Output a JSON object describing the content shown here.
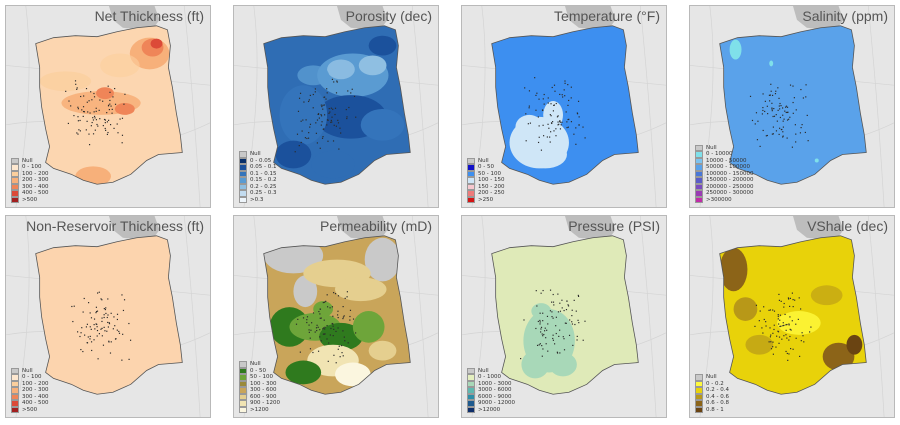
{
  "panels": [
    {
      "id": "net-thickness",
      "title": "Net Thickness (ft)",
      "base": "#fcd6b0",
      "legend": [
        {
          "label": "Null",
          "color": "#c9c9c9"
        },
        {
          "label": "0 - 100",
          "color": "#fde7cf"
        },
        {
          "label": "100 - 200",
          "color": "#fbcf9d"
        },
        {
          "label": "200 - 300",
          "color": "#f7b07a"
        },
        {
          "label": "300 - 400",
          "color": "#ef8558"
        },
        {
          "label": "400 - 500",
          "color": "#dc4a38"
        },
        {
          "label": ">500",
          "color": "#a21e1e"
        }
      ]
    },
    {
      "id": "porosity",
      "title": "Porosity (dec)",
      "base": "#2f6db4",
      "legend": [
        {
          "label": "Null",
          "color": "#c9c9c9"
        },
        {
          "label": "0 - 0.05",
          "color": "#08306b"
        },
        {
          "label": "0.05 - 0.1",
          "color": "#1b519c"
        },
        {
          "label": "0.1 - 0.15",
          "color": "#3474bb"
        },
        {
          "label": "0.15 - 0.2",
          "color": "#5a9bd2"
        },
        {
          "label": "0.2 - 0.25",
          "color": "#8fbfe2"
        },
        {
          "label": "0.25 - 0.3",
          "color": "#c3dcf0"
        },
        {
          "label": ">0.3",
          "color": "#eef5fb"
        }
      ]
    },
    {
      "id": "temperature",
      "title": "Temperature (°F)",
      "base": "#3d8ff0",
      "legend": [
        {
          "label": "Null",
          "color": "#c9c9c9"
        },
        {
          "label": "0 - 50",
          "color": "#1010c8"
        },
        {
          "label": "50 - 100",
          "color": "#3d8ff0"
        },
        {
          "label": "100 - 150",
          "color": "#cfe6f7"
        },
        {
          "label": "150 - 200",
          "color": "#f7c8cf"
        },
        {
          "label": "200 - 250",
          "color": "#ee7b7b"
        },
        {
          "label": ">250",
          "color": "#d41414"
        }
      ]
    },
    {
      "id": "salinity",
      "title": "Salinity (ppm)",
      "base": "#5aa2ea",
      "legend": [
        {
          "label": "Null",
          "color": "#c9c9c9"
        },
        {
          "label": "0 - 10000",
          "color": "#7fe0ea"
        },
        {
          "label": "10000 - 50000",
          "color": "#7cc3f0"
        },
        {
          "label": "50000 - 100000",
          "color": "#5aa2ea"
        },
        {
          "label": "100000 - 150000",
          "color": "#4a78d8"
        },
        {
          "label": "150000 - 200000",
          "color": "#5a5cc8"
        },
        {
          "label": "200000 - 250000",
          "color": "#7a4cc0"
        },
        {
          "label": "250000 - 300000",
          "color": "#9a3cb4"
        },
        {
          "label": ">300000",
          "color": "#c02ca8"
        }
      ]
    },
    {
      "id": "non-reservoir-thickness",
      "title": "Non-Reservoir Thickness (ft)",
      "base": "#fcd4ae",
      "legend": [
        {
          "label": "Null",
          "color": "#c9c9c9"
        },
        {
          "label": "0 - 100",
          "color": "#fde7cf"
        },
        {
          "label": "100 - 200",
          "color": "#fbcf9d"
        },
        {
          "label": "200 - 300",
          "color": "#f7b07a"
        },
        {
          "label": "300 - 400",
          "color": "#ef8558"
        },
        {
          "label": "400 - 500",
          "color": "#dc4a38"
        },
        {
          "label": ">500",
          "color": "#a21e1e"
        }
      ]
    },
    {
      "id": "permeability",
      "title": "Permeability (mD)",
      "base": "#c9a55a",
      "legend": [
        {
          "label": "Null",
          "color": "#c9c9c9"
        },
        {
          "label": "0 - 50",
          "color": "#2f7a1e"
        },
        {
          "label": "50 - 100",
          "color": "#6ea53a"
        },
        {
          "label": "100 - 300",
          "color": "#9a8a3a"
        },
        {
          "label": "300 - 600",
          "color": "#c9a55a"
        },
        {
          "label": "600 - 900",
          "color": "#e5cf8f"
        },
        {
          "label": "900 - 1200",
          "color": "#f1e4b3"
        },
        {
          "label": ">1200",
          "color": "#fbf6df"
        }
      ]
    },
    {
      "id": "pressure",
      "title": "Pressure (PSI)",
      "base": "#dfeab8",
      "legend": [
        {
          "label": "Null",
          "color": "#c9c9c9"
        },
        {
          "label": "0 - 1000",
          "color": "#e4efbf"
        },
        {
          "label": "1000 - 3000",
          "color": "#a8d8b8"
        },
        {
          "label": "3000 - 6000",
          "color": "#5fb8b0"
        },
        {
          "label": "6000 - 9000",
          "color": "#2d8ea8"
        },
        {
          "label": "9000 - 12000",
          "color": "#1e5a8e"
        },
        {
          "label": ">12000",
          "color": "#0f2f6a"
        }
      ]
    },
    {
      "id": "vshale",
      "title": "VShale (dec)",
      "base": "#e8d20a",
      "legend": [
        {
          "label": "Null",
          "color": "#c9c9c9"
        },
        {
          "label": "0 - 0.2",
          "color": "#fffa3c"
        },
        {
          "label": "0.2 - 0.4",
          "color": "#e8d20a"
        },
        {
          "label": "0.4 - 0.6",
          "color": "#b89818"
        },
        {
          "label": "0.6 - 0.8",
          "color": "#8c6418"
        },
        {
          "label": "0.8 - 1",
          "color": "#6a4412"
        }
      ]
    }
  ]
}
